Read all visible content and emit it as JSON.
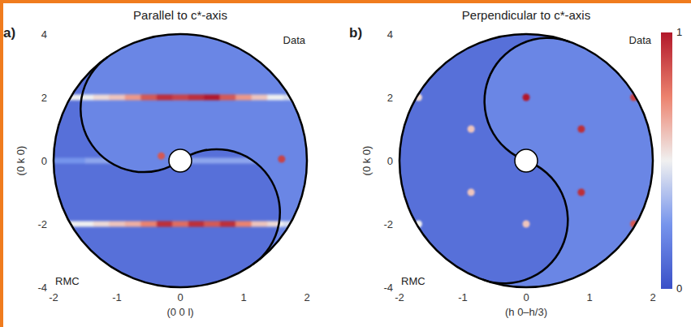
{
  "chart_data": [
    {
      "type": "heatmap",
      "panel": "a)",
      "title": "Parallel to c*-axis",
      "x_label": "(0 0 l)",
      "y_label": "(0 k 0)",
      "xlim": [
        -2,
        2
      ],
      "ylim": [
        -4,
        4
      ],
      "xticks": [
        -2,
        -1,
        0,
        1,
        2
      ],
      "yticks": [
        -4,
        -2,
        0,
        2,
        4
      ],
      "data": {
        "label": "Data",
        "background": 0.2,
        "streaks": [
          {
            "y": 2,
            "x": [
              -2,
              -1.75,
              -1.5,
              -1.25,
              -1,
              -0.75,
              -0.5,
              -0.25,
              0,
              0.25,
              0.5,
              0.75,
              1,
              1.25,
              1.5,
              1.75,
              2
            ],
            "intensity": [
              0.4,
              0.45,
              0.5,
              0.55,
              0.6,
              0.7,
              0.85,
              0.95,
              0.9,
              0.95,
              1.0,
              0.85,
              0.7,
              0.6,
              0.5,
              0.45,
              0.4
            ]
          },
          {
            "y": -2,
            "x": [
              -2,
              -1.75,
              -1.5,
              -1.25,
              -1,
              -0.75,
              -0.5,
              -0.25,
              0,
              0.25,
              0.5,
              0.75,
              1,
              1.25,
              1.5,
              1.75,
              2
            ],
            "intensity": [
              0.4,
              0.45,
              0.5,
              0.55,
              0.6,
              0.7,
              0.85,
              0.95,
              0.9,
              0.95,
              1.0,
              0.85,
              0.7,
              0.6,
              0.5,
              0.45,
              0.4
            ]
          }
        ],
        "spots": [
          {
            "x": 1.6,
            "y": 0.05,
            "intensity": 0.9
          },
          {
            "x": -0.3,
            "y": 0.15,
            "intensity": 0.85
          }
        ]
      },
      "rmc": {
        "label": "RMC",
        "background": 0.12,
        "streaks": [
          {
            "y": -2,
            "x": [
              -2,
              -1.75,
              -1.5,
              -1.25,
              -1,
              -0.75,
              -0.5,
              -0.25,
              0,
              0.25,
              0.5,
              0.75,
              1,
              1.25,
              1.5,
              1.75,
              2
            ],
            "intensity": [
              0.45,
              0.5,
              0.5,
              0.55,
              0.6,
              0.65,
              0.75,
              0.95,
              0.8,
              0.95,
              0.85,
              0.95,
              0.75,
              0.6,
              0.55,
              0.5,
              0.45
            ]
          },
          {
            "y": 2,
            "x": [
              -2,
              -1.75,
              -1.5,
              -1.25,
              -1,
              -0.75,
              -0.5,
              -0.25,
              0,
              0.25,
              0.5,
              0.75,
              1,
              1.25,
              1.5,
              1.75,
              2
            ],
            "intensity": [
              0.45,
              0.5,
              0.5,
              0.55,
              0.6,
              0.65,
              0.75,
              0.95,
              0.8,
              0.95,
              0.85,
              0.95,
              0.75,
              0.6,
              0.55,
              0.5,
              0.45
            ]
          },
          {
            "y": 0,
            "x": [
              -2,
              -1,
              0,
              1,
              2
            ],
            "intensity": [
              0.25,
              0.3,
              0.3,
              0.3,
              0.25
            ]
          }
        ],
        "spots": []
      }
    },
    {
      "type": "heatmap",
      "panel": "b)",
      "title": "Perpendicular to c*-axis",
      "x_label": "(h 0–h/3)",
      "y_label": "(0 k 0)",
      "xlim": [
        -2,
        2
      ],
      "ylim": [
        -4,
        4
      ],
      "xticks": [
        -2,
        -1,
        0,
        1,
        2
      ],
      "yticks": [
        -4,
        -2,
        0,
        2,
        4
      ],
      "data": {
        "label": "Data",
        "background": 0.2,
        "streaks": [],
        "spots": [
          {
            "x": 0,
            "y": 2,
            "intensity": 1.0
          },
          {
            "x": 0.87,
            "y": 1,
            "intensity": 0.95
          },
          {
            "x": 0.87,
            "y": -1,
            "intensity": 0.95
          },
          {
            "x": 1.7,
            "y": 2,
            "intensity": 0.9
          },
          {
            "x": 1.7,
            "y": -2,
            "intensity": 0.85
          }
        ]
      },
      "rmc": {
        "label": "RMC",
        "background": 0.12,
        "streaks": [],
        "spots": [
          {
            "x": -1.7,
            "y": 2,
            "intensity": 0.55
          },
          {
            "x": -0.87,
            "y": 1,
            "intensity": 0.6
          },
          {
            "x": -0.87,
            "y": -1,
            "intensity": 0.6
          },
          {
            "x": 0,
            "y": -2,
            "intensity": 0.6
          },
          {
            "x": -1.7,
            "y": -2,
            "intensity": 0.5
          }
        ]
      }
    }
  ],
  "colorbar": {
    "range": [
      0,
      1
    ],
    "ticks": [
      0,
      1
    ]
  }
}
